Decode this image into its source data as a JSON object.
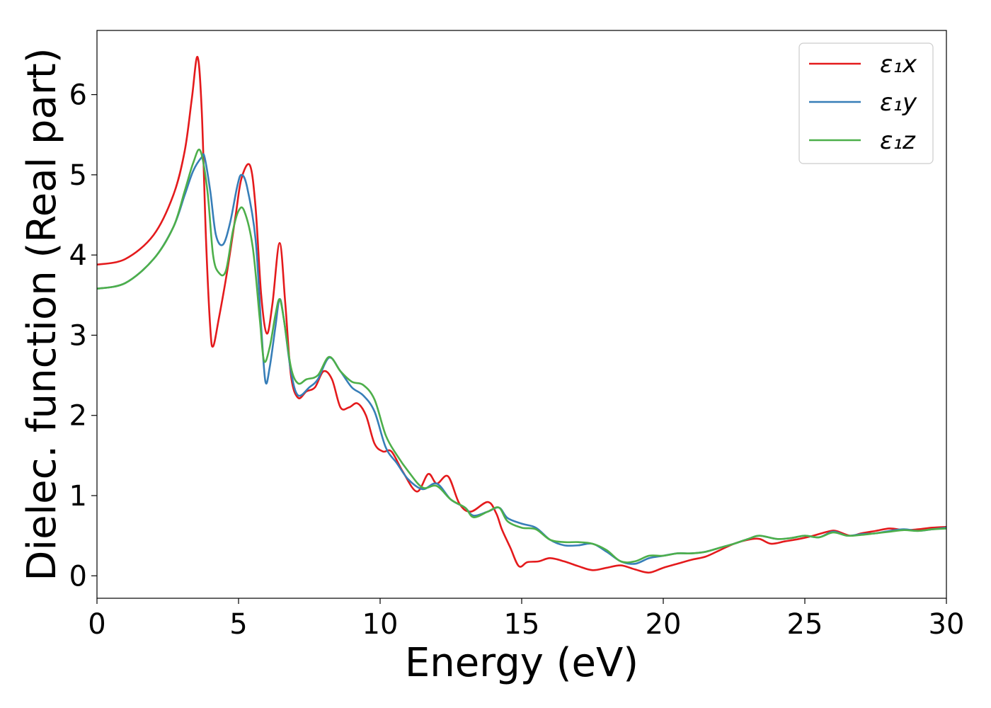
{
  "chart_data": {
    "type": "line",
    "title": "",
    "xlabel": "Energy (eV)",
    "ylabel": "Dielec. function (Real part)",
    "xlim": [
      0,
      30
    ],
    "ylim": [
      -0.28,
      6.8
    ],
    "xticks": [
      0,
      5,
      10,
      15,
      20,
      25,
      30
    ],
    "yticks": [
      0,
      1,
      2,
      3,
      4,
      5,
      6
    ],
    "grid": false,
    "legend_position": "top-right",
    "series": [
      {
        "name": "ε₁x",
        "color": "#e41a1c",
        "points": [
          [
            0,
            3.88
          ],
          [
            1,
            3.95
          ],
          [
            2,
            4.25
          ],
          [
            2.7,
            4.75
          ],
          [
            3.1,
            5.3
          ],
          [
            3.35,
            5.95
          ],
          [
            3.55,
            6.47
          ],
          [
            3.7,
            5.8
          ],
          [
            3.85,
            4.2
          ],
          [
            4.0,
            3.1
          ],
          [
            4.1,
            2.86
          ],
          [
            4.3,
            3.2
          ],
          [
            4.6,
            3.8
          ],
          [
            4.9,
            4.5
          ],
          [
            5.1,
            4.95
          ],
          [
            5.4,
            5.12
          ],
          [
            5.6,
            4.6
          ],
          [
            5.8,
            3.5
          ],
          [
            6.0,
            3.02
          ],
          [
            6.2,
            3.4
          ],
          [
            6.45,
            4.15
          ],
          [
            6.65,
            3.4
          ],
          [
            6.85,
            2.5
          ],
          [
            7.1,
            2.22
          ],
          [
            7.4,
            2.3
          ],
          [
            7.7,
            2.35
          ],
          [
            8.0,
            2.55
          ],
          [
            8.3,
            2.45
          ],
          [
            8.6,
            2.1
          ],
          [
            8.9,
            2.1
          ],
          [
            9.2,
            2.15
          ],
          [
            9.5,
            2.0
          ],
          [
            9.8,
            1.65
          ],
          [
            10.1,
            1.55
          ],
          [
            10.4,
            1.55
          ],
          [
            10.8,
            1.3
          ],
          [
            11.3,
            1.05
          ],
          [
            11.7,
            1.27
          ],
          [
            12.0,
            1.15
          ],
          [
            12.4,
            1.24
          ],
          [
            12.8,
            0.9
          ],
          [
            13.2,
            0.8
          ],
          [
            13.8,
            0.92
          ],
          [
            14.1,
            0.78
          ],
          [
            14.3,
            0.58
          ],
          [
            14.6,
            0.35
          ],
          [
            14.9,
            0.12
          ],
          [
            15.2,
            0.17
          ],
          [
            15.6,
            0.18
          ],
          [
            16.0,
            0.22
          ],
          [
            16.5,
            0.18
          ],
          [
            17.0,
            0.12
          ],
          [
            17.5,
            0.07
          ],
          [
            18.0,
            0.1
          ],
          [
            18.5,
            0.13
          ],
          [
            19.0,
            0.08
          ],
          [
            19.5,
            0.04
          ],
          [
            20.0,
            0.1
          ],
          [
            20.5,
            0.15
          ],
          [
            21.0,
            0.2
          ],
          [
            21.5,
            0.24
          ],
          [
            22.0,
            0.32
          ],
          [
            22.5,
            0.4
          ],
          [
            23.0,
            0.45
          ],
          [
            23.4,
            0.46
          ],
          [
            23.8,
            0.4
          ],
          [
            24.3,
            0.43
          ],
          [
            24.8,
            0.46
          ],
          [
            25.3,
            0.5
          ],
          [
            25.8,
            0.55
          ],
          [
            26.1,
            0.56
          ],
          [
            26.6,
            0.5
          ],
          [
            27.0,
            0.53
          ],
          [
            27.5,
            0.56
          ],
          [
            28.0,
            0.59
          ],
          [
            28.5,
            0.57
          ],
          [
            29.0,
            0.58
          ],
          [
            29.5,
            0.6
          ],
          [
            30,
            0.61
          ]
        ]
      },
      {
        "name": "ε₁y",
        "color": "#377eb8",
        "points": [
          [
            0,
            3.58
          ],
          [
            1,
            3.65
          ],
          [
            2,
            3.95
          ],
          [
            2.7,
            4.35
          ],
          [
            3.1,
            4.75
          ],
          [
            3.4,
            5.05
          ],
          [
            3.7,
            5.22
          ],
          [
            3.8,
            5.22
          ],
          [
            4.0,
            4.8
          ],
          [
            4.2,
            4.25
          ],
          [
            4.45,
            4.13
          ],
          [
            4.7,
            4.4
          ],
          [
            4.95,
            4.85
          ],
          [
            5.1,
            5.0
          ],
          [
            5.3,
            4.85
          ],
          [
            5.6,
            4.2
          ],
          [
            5.8,
            3.1
          ],
          [
            5.95,
            2.42
          ],
          [
            6.1,
            2.6
          ],
          [
            6.3,
            3.1
          ],
          [
            6.45,
            3.45
          ],
          [
            6.6,
            3.2
          ],
          [
            6.85,
            2.55
          ],
          [
            7.1,
            2.25
          ],
          [
            7.5,
            2.35
          ],
          [
            7.8,
            2.45
          ],
          [
            8.2,
            2.72
          ],
          [
            8.6,
            2.55
          ],
          [
            9.0,
            2.35
          ],
          [
            9.4,
            2.25
          ],
          [
            9.8,
            2.05
          ],
          [
            10.2,
            1.6
          ],
          [
            10.6,
            1.4
          ],
          [
            11.0,
            1.2
          ],
          [
            11.5,
            1.08
          ],
          [
            12.0,
            1.15
          ],
          [
            12.5,
            0.95
          ],
          [
            13.0,
            0.85
          ],
          [
            13.3,
            0.75
          ],
          [
            13.8,
            0.8
          ],
          [
            14.2,
            0.85
          ],
          [
            14.5,
            0.72
          ],
          [
            15.0,
            0.65
          ],
          [
            15.5,
            0.6
          ],
          [
            16.0,
            0.45
          ],
          [
            16.5,
            0.38
          ],
          [
            17.0,
            0.38
          ],
          [
            17.5,
            0.4
          ],
          [
            18.0,
            0.3
          ],
          [
            18.5,
            0.18
          ],
          [
            19.0,
            0.15
          ],
          [
            19.5,
            0.22
          ],
          [
            20.0,
            0.25
          ],
          [
            20.5,
            0.28
          ],
          [
            21.0,
            0.28
          ],
          [
            21.5,
            0.3
          ],
          [
            22.0,
            0.35
          ],
          [
            22.5,
            0.4
          ],
          [
            23.0,
            0.46
          ],
          [
            23.4,
            0.5
          ],
          [
            24.0,
            0.46
          ],
          [
            24.5,
            0.47
          ],
          [
            25.0,
            0.5
          ],
          [
            25.5,
            0.48
          ],
          [
            26.0,
            0.55
          ],
          [
            26.5,
            0.5
          ],
          [
            27.0,
            0.52
          ],
          [
            27.5,
            0.53
          ],
          [
            28.0,
            0.56
          ],
          [
            28.5,
            0.58
          ],
          [
            29.0,
            0.56
          ],
          [
            29.5,
            0.58
          ],
          [
            30,
            0.6
          ]
        ]
      },
      {
        "name": "ε₁z",
        "color": "#4daf4a",
        "points": [
          [
            0,
            3.58
          ],
          [
            1,
            3.65
          ],
          [
            2,
            3.95
          ],
          [
            2.7,
            4.35
          ],
          [
            3.1,
            4.8
          ],
          [
            3.4,
            5.15
          ],
          [
            3.65,
            5.3
          ],
          [
            3.9,
            4.8
          ],
          [
            4.1,
            4.0
          ],
          [
            4.3,
            3.78
          ],
          [
            4.55,
            3.8
          ],
          [
            4.8,
            4.3
          ],
          [
            5.0,
            4.55
          ],
          [
            5.2,
            4.55
          ],
          [
            5.5,
            4.1
          ],
          [
            5.75,
            3.2
          ],
          [
            5.9,
            2.68
          ],
          [
            6.1,
            2.85
          ],
          [
            6.3,
            3.25
          ],
          [
            6.45,
            3.45
          ],
          [
            6.6,
            3.2
          ],
          [
            6.85,
            2.6
          ],
          [
            7.1,
            2.4
          ],
          [
            7.4,
            2.45
          ],
          [
            7.8,
            2.5
          ],
          [
            8.2,
            2.73
          ],
          [
            8.6,
            2.55
          ],
          [
            9.0,
            2.42
          ],
          [
            9.4,
            2.38
          ],
          [
            9.8,
            2.2
          ],
          [
            10.2,
            1.75
          ],
          [
            10.6,
            1.5
          ],
          [
            11.0,
            1.3
          ],
          [
            11.5,
            1.1
          ],
          [
            12.0,
            1.12
          ],
          [
            12.5,
            0.95
          ],
          [
            13.0,
            0.85
          ],
          [
            13.3,
            0.73
          ],
          [
            13.8,
            0.8
          ],
          [
            14.2,
            0.85
          ],
          [
            14.5,
            0.68
          ],
          [
            15.0,
            0.6
          ],
          [
            15.5,
            0.58
          ],
          [
            16.0,
            0.45
          ],
          [
            16.5,
            0.42
          ],
          [
            17.0,
            0.42
          ],
          [
            17.5,
            0.4
          ],
          [
            18.0,
            0.32
          ],
          [
            18.5,
            0.18
          ],
          [
            19.0,
            0.18
          ],
          [
            19.5,
            0.25
          ],
          [
            20.0,
            0.25
          ],
          [
            20.5,
            0.28
          ],
          [
            21.0,
            0.28
          ],
          [
            21.5,
            0.3
          ],
          [
            22.0,
            0.35
          ],
          [
            22.5,
            0.4
          ],
          [
            23.0,
            0.46
          ],
          [
            23.4,
            0.5
          ],
          [
            24.0,
            0.46
          ],
          [
            24.5,
            0.47
          ],
          [
            25.0,
            0.5
          ],
          [
            25.5,
            0.48
          ],
          [
            26.0,
            0.54
          ],
          [
            26.5,
            0.5
          ],
          [
            27.0,
            0.51
          ],
          [
            27.5,
            0.53
          ],
          [
            28.0,
            0.55
          ],
          [
            28.5,
            0.57
          ],
          [
            29.0,
            0.56
          ],
          [
            29.5,
            0.58
          ],
          [
            30,
            0.59
          ]
        ]
      }
    ]
  }
}
